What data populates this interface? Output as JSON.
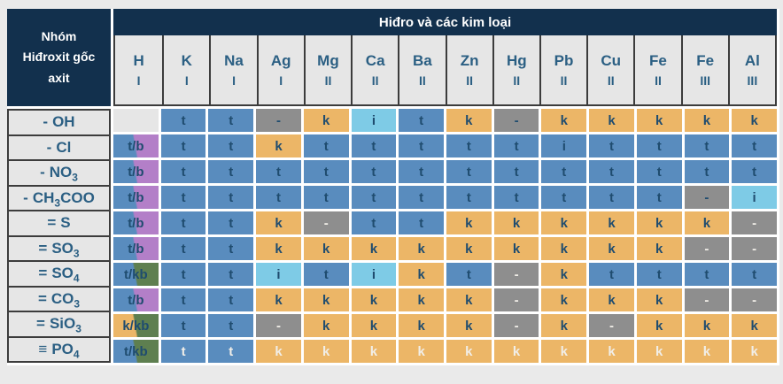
{
  "header": {
    "corner_title": "Nhóm\nHiđroxit gốc\naxit",
    "top_band_title": "Hiđro và các kim loại"
  },
  "colors": {
    "navy": "#12304D",
    "page_bg": "#EAEAEA",
    "cell_light": "#E6E6E6",
    "grid_line": "#3C3C3C",
    "gap_white": "#FFFFFF",
    "header_text": "#2B5F83",
    "text_navy": "#1F4C6F",
    "text_white": "#F1EEE8",
    "blue": "#598CBE",
    "orange": "#ECB667",
    "cyan": "#7ECBE6",
    "gray": "#8E8E8E",
    "purple": "#B37FC8",
    "green": "#5E7F50"
  },
  "chart_data": {
    "type": "table",
    "corner_header": "Nhóm Hiđroxit gốc axit",
    "column_group_header": "Hiđro và các kim loại",
    "columns": [
      {
        "symbol": "H",
        "valence": "I"
      },
      {
        "symbol": "K",
        "valence": "I"
      },
      {
        "symbol": "Na",
        "valence": "I"
      },
      {
        "symbol": "Ag",
        "valence": "I"
      },
      {
        "symbol": "Mg",
        "valence": "II"
      },
      {
        "symbol": "Ca",
        "valence": "II"
      },
      {
        "symbol": "Ba",
        "valence": "II"
      },
      {
        "symbol": "Zn",
        "valence": "II"
      },
      {
        "symbol": "Hg",
        "valence": "II"
      },
      {
        "symbol": "Pb",
        "valence": "II"
      },
      {
        "symbol": "Cu",
        "valence": "II"
      },
      {
        "symbol": "Fe",
        "valence": "II"
      },
      {
        "symbol": "Fe",
        "valence": "III"
      },
      {
        "symbol": "Al",
        "valence": "III"
      }
    ],
    "cell_code_format": "value:bg[:fg] — bg codes: b=blue, o=orange, c=cyan, g=gray, lt=light-empty, bp=blue/purple split, bgr=blue/green split, og=orange/green split; fg code w=white letter",
    "rows": [
      {
        "bond": "-",
        "formula": "OH",
        "cells": [
          ":lt",
          "t:b",
          "t:b",
          "-:g",
          "k:o",
          "i:c",
          "t:b",
          "k:o",
          "-:g",
          "k:o",
          "k:o",
          "k:o",
          "k:o",
          "k:o"
        ]
      },
      {
        "bond": "-",
        "formula": "Cl",
        "cells": [
          "t/b:bp",
          "t:b",
          "t:b",
          "k:o",
          "t:b",
          "t:b",
          "t:b",
          "t:b",
          "t:b",
          "i:b",
          "t:b",
          "t:b",
          "t:b",
          "t:b"
        ]
      },
      {
        "bond": "-",
        "formula": "NO~3~",
        "cells": [
          "t/b:bp",
          "t:b",
          "t:b",
          "t:b",
          "t:b",
          "t:b",
          "t:b",
          "t:b",
          "t:b",
          "t:b",
          "t:b",
          "t:b",
          "t:b",
          "t:b"
        ]
      },
      {
        "bond": "-",
        "formula": "CH~3~COO",
        "cells": [
          "t/b:bp",
          "t:b",
          "t:b",
          "t:b",
          "t:b",
          "t:b",
          "t:b",
          "t:b",
          "t:b",
          "t:b",
          "t:b",
          "t:b",
          "-:g",
          "i:c"
        ]
      },
      {
        "bond": "=",
        "formula": "S",
        "cells": [
          "t/b:bp",
          "t:b",
          "t:b",
          "k:o",
          "-:g:w",
          "t:b",
          "t:b",
          "k:o",
          "k:o",
          "k:o",
          "k:o",
          "k:o",
          "k:o",
          "-:g:w"
        ]
      },
      {
        "bond": "=",
        "formula": "SO~3~",
        "cells": [
          "t/b:bp",
          "t:b",
          "t:b",
          "k:o",
          "k:o",
          "k:o",
          "k:o",
          "k:o",
          "k:o",
          "k:o",
          "k:o",
          "k:o",
          "-:g:w",
          "-:g:w"
        ]
      },
      {
        "bond": "=",
        "formula": "SO~4~",
        "cells": [
          "t/kb:bgr",
          "t:b",
          "t:b",
          "i:c",
          "t:b",
          "i:c",
          "k:o",
          "t:b",
          "-:g:w",
          "k:o",
          "t:b",
          "t:b",
          "t:b",
          "t:b"
        ]
      },
      {
        "bond": "=",
        "formula": "CO~3~",
        "cells": [
          "t/b:bp",
          "t:b",
          "t:b",
          "k:o",
          "k:o",
          "k:o",
          "k:o",
          "k:o",
          "-:g:w",
          "k:o",
          "k:o",
          "k:o",
          "-:g:w",
          "-:g:w"
        ]
      },
      {
        "bond": "=",
        "formula": "SiO~3~",
        "cells": [
          "k/kb:og",
          "t:b",
          "t:b",
          "-:g:w",
          "k:o",
          "k:o",
          "k:o",
          "k:o",
          "-:g:w",
          "k:o",
          "-:g:w",
          "k:o",
          "k:o",
          "k:o"
        ]
      },
      {
        "bond": "≡",
        "formula": "PO~4~",
        "cells": [
          "t/kb:bgr",
          "t:b:w",
          "t:b:w",
          "k:o:w",
          "k:o:w",
          "k:o:w",
          "k:o:w",
          "k:o:w",
          "k:o:w",
          "k:o:w",
          "k:o:w",
          "k:o:w",
          "k:o:w",
          "k:o:w"
        ]
      }
    ]
  }
}
